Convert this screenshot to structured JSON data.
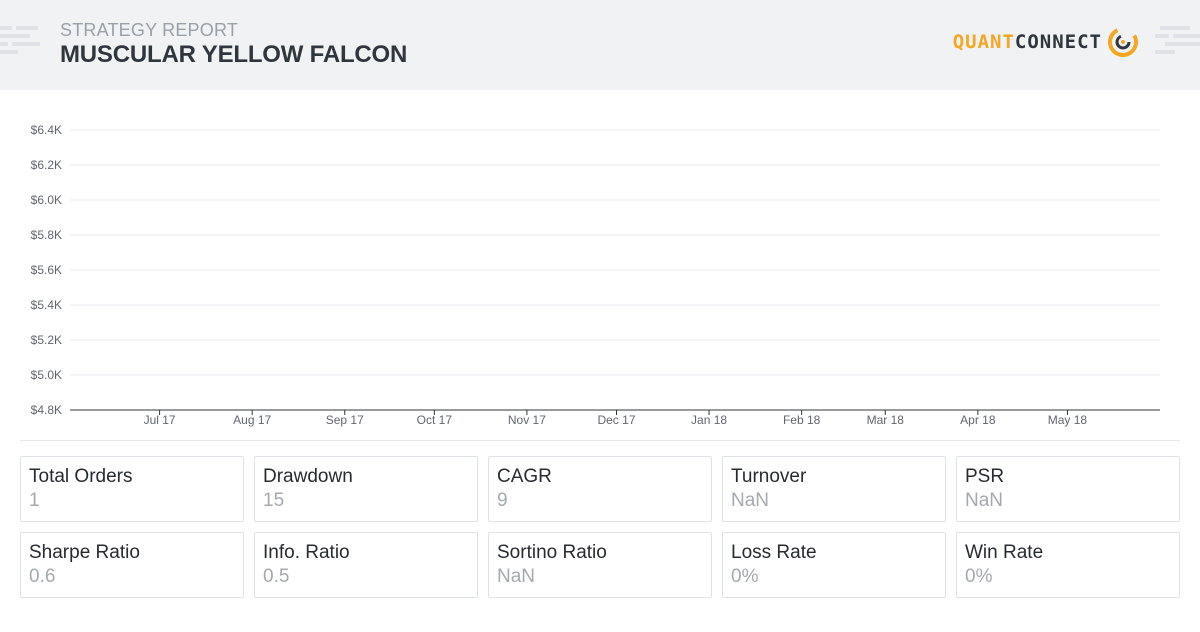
{
  "header": {
    "label": "STRATEGY REPORT",
    "title": "MUSCULAR YELLOW FALCON",
    "logo_quant": "QUANT",
    "logo_connect": "CONNECT"
  },
  "colors": {
    "accent": "#f5a623",
    "header_bg": "#f1f2f4",
    "gridline": "#e6e8eb",
    "axis": "#30363d"
  },
  "chart_data": {
    "type": "line",
    "title": "",
    "xlabel": "",
    "ylabel": "",
    "y_ticks": [
      "$4.8K",
      "$5.0K",
      "$5.2K",
      "$5.4K",
      "$5.6K",
      "$5.8K",
      "$6.0K",
      "$6.2K",
      "$6.4K"
    ],
    "ylim": [
      4800,
      6400
    ],
    "x_ticks": [
      "Jul 17",
      "Aug 17",
      "Sep 17",
      "Oct 17",
      "Nov 17",
      "Dec 17",
      "Jan 18",
      "Feb 18",
      "Mar 18",
      "Apr 18",
      "May 18"
    ],
    "x_range": [
      "2017-06-01",
      "2018-06-01"
    ],
    "x_tick_dates": [
      "2017-07-01",
      "2017-08-01",
      "2017-09-01",
      "2017-10-01",
      "2017-11-01",
      "2017-12-01",
      "2018-01-01",
      "2018-02-01",
      "2018-03-01",
      "2018-04-01",
      "2018-05-01"
    ],
    "grid": true,
    "series": []
  },
  "stats": [
    {
      "label": "Total Orders",
      "value": "1"
    },
    {
      "label": "Drawdown",
      "value": "15"
    },
    {
      "label": "CAGR",
      "value": "9"
    },
    {
      "label": "Turnover",
      "value": "NaN"
    },
    {
      "label": "PSR",
      "value": "NaN"
    },
    {
      "label": "Sharpe Ratio",
      "value": "0.6"
    },
    {
      "label": "Info. Ratio",
      "value": "0.5"
    },
    {
      "label": "Sortino Ratio",
      "value": "NaN"
    },
    {
      "label": "Loss Rate",
      "value": "0%"
    },
    {
      "label": "Win Rate",
      "value": "0%"
    }
  ]
}
